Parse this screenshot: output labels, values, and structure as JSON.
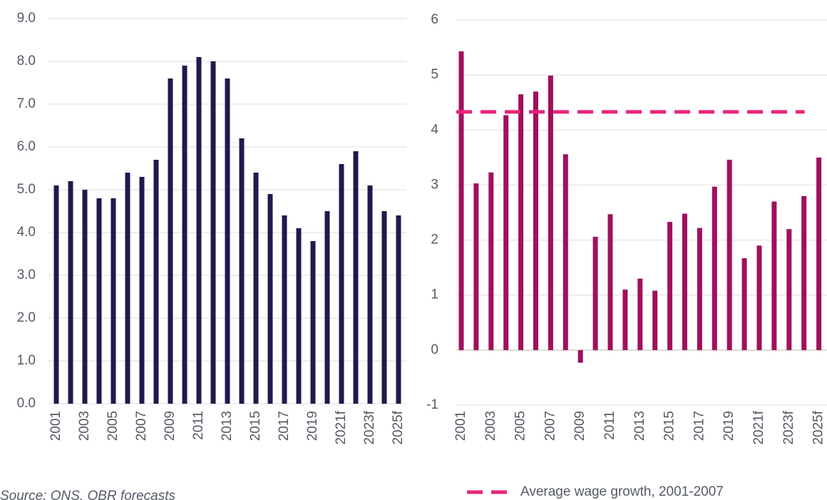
{
  "chart_data": [
    {
      "type": "bar",
      "color": "#1f1a4d",
      "categories": [
        "2001",
        null,
        "2003",
        null,
        "2005",
        null,
        "2007",
        null,
        "2009",
        null,
        "2011",
        null,
        "2013",
        null,
        "2015",
        null,
        "2017",
        null,
        "2019",
        null,
        "2021f",
        null,
        "2023f",
        null,
        "2025f"
      ],
      "values": [
        5.1,
        5.2,
        5.0,
        4.8,
        4.8,
        5.4,
        5.3,
        5.7,
        7.6,
        7.9,
        8.1,
        8.0,
        7.6,
        6.2,
        5.4,
        4.9,
        4.4,
        4.1,
        3.8,
        4.5,
        5.6,
        5.9,
        5.1,
        4.5,
        4.4
      ],
      "ylim": [
        0,
        9
      ],
      "yticks": [
        {
          "value": 0,
          "label": "0.0"
        },
        {
          "value": 1,
          "label": "1.0"
        },
        {
          "value": 2,
          "label": "2.0"
        },
        {
          "value": 3,
          "label": "3.0"
        },
        {
          "value": 4,
          "label": "4.0"
        },
        {
          "value": 5,
          "label": "5.0"
        },
        {
          "value": 6,
          "label": "6.0"
        },
        {
          "value": 7,
          "label": "7.0"
        },
        {
          "value": 8,
          "label": "8.0"
        },
        {
          "value": 9,
          "label": "9.0"
        }
      ],
      "grid": true,
      "source": "Source: ONS, OBR forecasts"
    },
    {
      "type": "bar",
      "color": "#a0105c",
      "categories": [
        "2001",
        null,
        "2003",
        null,
        "2005",
        null,
        "2007",
        null,
        "2009",
        null,
        "2011",
        null,
        "2013",
        null,
        "2015",
        null,
        "2017",
        null,
        "2019",
        null,
        "2021f",
        null,
        "2023f",
        null,
        "2025f"
      ],
      "values": [
        5.43,
        3.03,
        3.23,
        4.27,
        4.65,
        4.7,
        4.99,
        3.56,
        -0.23,
        2.06,
        2.47,
        1.1,
        1.3,
        1.08,
        2.33,
        2.48,
        2.22,
        2.97,
        3.46,
        1.67,
        1.9,
        2.7,
        2.2,
        2.8,
        3.5
      ],
      "ylim": [
        -1,
        6
      ],
      "yticks": [
        -1,
        0,
        1,
        2,
        3,
        4,
        5,
        6
      ],
      "grid": true,
      "reference": {
        "name": "Average wage growth, 2001-2007",
        "value": 4.33,
        "color": "#e8247a"
      },
      "legend": "bottom"
    }
  ]
}
